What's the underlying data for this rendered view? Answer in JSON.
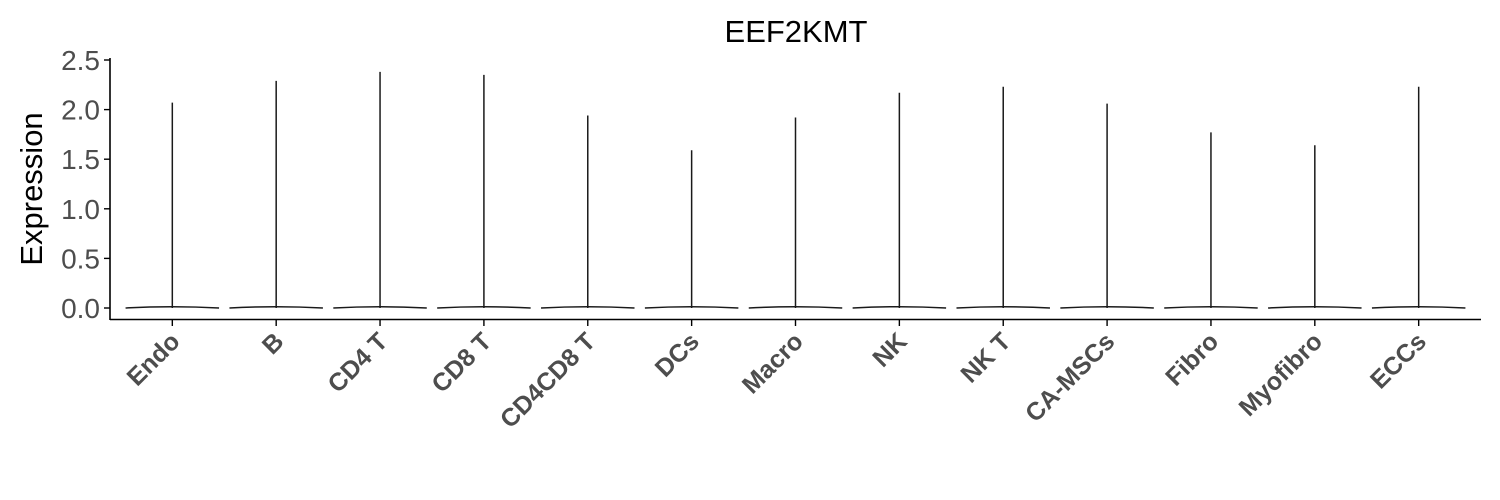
{
  "chart_data": {
    "type": "violin",
    "title": "EEF2KMT",
    "xlabel": "",
    "ylabel": "Expression",
    "ylim": [
      -0.1,
      2.5
    ],
    "yticks": [
      "0.0",
      "0.5",
      "1.0",
      "1.5",
      "2.0",
      "2.5"
    ],
    "ytick_values": [
      0.0,
      0.5,
      1.0,
      1.5,
      2.0,
      2.5
    ],
    "categories": [
      "Endo",
      "B",
      "CD4 T",
      "CD8 T",
      "CD4CD8 T",
      "DCs",
      "Macro",
      "NK",
      "NK T",
      "CA-MSCs",
      "Fibro",
      "Myofibro",
      "ECCs"
    ],
    "max_values": [
      2.07,
      2.29,
      2.38,
      2.35,
      1.94,
      1.59,
      1.92,
      2.17,
      2.23,
      2.06,
      1.77,
      1.64,
      2.23
    ],
    "baseline": 0.0,
    "colors": {
      "violin": "#1a1a1a",
      "axis": "#000000",
      "tick_text": "#4d4d4d"
    }
  }
}
